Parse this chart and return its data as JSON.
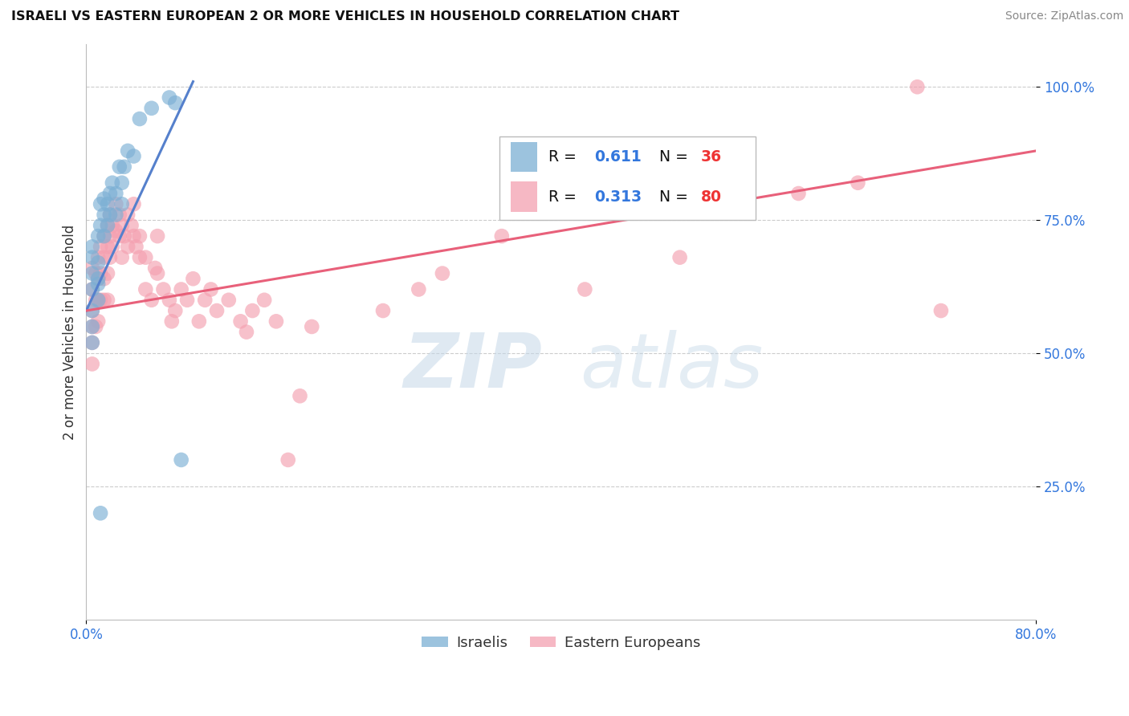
{
  "title": "ISRAELI VS EASTERN EUROPEAN 2 OR MORE VEHICLES IN HOUSEHOLD CORRELATION CHART",
  "source": "Source: ZipAtlas.com",
  "ylabel": "2 or more Vehicles in Household",
  "xlim": [
    0.0,
    0.8
  ],
  "ylim": [
    0.0,
    1.08
  ],
  "xticks": [
    0.0,
    0.8
  ],
  "xticklabels": [
    "0.0%",
    "80.0%"
  ],
  "ytick_positions": [
    0.25,
    0.5,
    0.75,
    1.0
  ],
  "ytick_labels": [
    "25.0%",
    "50.0%",
    "75.0%",
    "100.0%"
  ],
  "legend_r_israeli": "0.611",
  "legend_n_israeli": "36",
  "legend_r_eastern": "0.313",
  "legend_n_eastern": "80",
  "israeli_color": "#7BAFD4",
  "eastern_color": "#F4A0B0",
  "israeli_line_color": "#5580CC",
  "eastern_line_color": "#E8607A",
  "watermark_zip": "ZIP",
  "watermark_atlas": "atlas",
  "israeli_points": [
    [
      0.005,
      0.62
    ],
    [
      0.005,
      0.65
    ],
    [
      0.005,
      0.58
    ],
    [
      0.005,
      0.55
    ],
    [
      0.005,
      0.52
    ],
    [
      0.005,
      0.68
    ],
    [
      0.005,
      0.7
    ],
    [
      0.01,
      0.6
    ],
    [
      0.01,
      0.63
    ],
    [
      0.01,
      0.67
    ],
    [
      0.01,
      0.72
    ],
    [
      0.01,
      0.64
    ],
    [
      0.012,
      0.78
    ],
    [
      0.012,
      0.74
    ],
    [
      0.015,
      0.79
    ],
    [
      0.015,
      0.76
    ],
    [
      0.015,
      0.72
    ],
    [
      0.018,
      0.78
    ],
    [
      0.018,
      0.74
    ],
    [
      0.02,
      0.8
    ],
    [
      0.02,
      0.76
    ],
    [
      0.022,
      0.82
    ],
    [
      0.025,
      0.8
    ],
    [
      0.025,
      0.76
    ],
    [
      0.028,
      0.85
    ],
    [
      0.03,
      0.82
    ],
    [
      0.03,
      0.78
    ],
    [
      0.032,
      0.85
    ],
    [
      0.035,
      0.88
    ],
    [
      0.04,
      0.87
    ],
    [
      0.045,
      0.94
    ],
    [
      0.055,
      0.96
    ],
    [
      0.07,
      0.98
    ],
    [
      0.075,
      0.97
    ],
    [
      0.08,
      0.3
    ],
    [
      0.012,
      0.2
    ]
  ],
  "eastern_points": [
    [
      0.005,
      0.66
    ],
    [
      0.005,
      0.62
    ],
    [
      0.005,
      0.58
    ],
    [
      0.005,
      0.55
    ],
    [
      0.005,
      0.52
    ],
    [
      0.005,
      0.48
    ],
    [
      0.008,
      0.65
    ],
    [
      0.008,
      0.6
    ],
    [
      0.008,
      0.55
    ],
    [
      0.01,
      0.68
    ],
    [
      0.01,
      0.64
    ],
    [
      0.01,
      0.6
    ],
    [
      0.01,
      0.56
    ],
    [
      0.012,
      0.7
    ],
    [
      0.012,
      0.65
    ],
    [
      0.012,
      0.6
    ],
    [
      0.015,
      0.72
    ],
    [
      0.015,
      0.68
    ],
    [
      0.015,
      0.64
    ],
    [
      0.015,
      0.6
    ],
    [
      0.018,
      0.74
    ],
    [
      0.018,
      0.7
    ],
    [
      0.018,
      0.65
    ],
    [
      0.018,
      0.6
    ],
    [
      0.02,
      0.76
    ],
    [
      0.02,
      0.72
    ],
    [
      0.02,
      0.68
    ],
    [
      0.022,
      0.74
    ],
    [
      0.022,
      0.7
    ],
    [
      0.025,
      0.78
    ],
    [
      0.025,
      0.73
    ],
    [
      0.028,
      0.76
    ],
    [
      0.028,
      0.72
    ],
    [
      0.03,
      0.74
    ],
    [
      0.03,
      0.68
    ],
    [
      0.032,
      0.72
    ],
    [
      0.035,
      0.76
    ],
    [
      0.035,
      0.7
    ],
    [
      0.038,
      0.74
    ],
    [
      0.04,
      0.78
    ],
    [
      0.04,
      0.72
    ],
    [
      0.042,
      0.7
    ],
    [
      0.045,
      0.68
    ],
    [
      0.045,
      0.72
    ],
    [
      0.05,
      0.68
    ],
    [
      0.05,
      0.62
    ],
    [
      0.055,
      0.6
    ],
    [
      0.058,
      0.66
    ],
    [
      0.06,
      0.72
    ],
    [
      0.06,
      0.65
    ],
    [
      0.065,
      0.62
    ],
    [
      0.07,
      0.6
    ],
    [
      0.072,
      0.56
    ],
    [
      0.075,
      0.58
    ],
    [
      0.08,
      0.62
    ],
    [
      0.085,
      0.6
    ],
    [
      0.09,
      0.64
    ],
    [
      0.095,
      0.56
    ],
    [
      0.1,
      0.6
    ],
    [
      0.105,
      0.62
    ],
    [
      0.11,
      0.58
    ],
    [
      0.12,
      0.6
    ],
    [
      0.13,
      0.56
    ],
    [
      0.135,
      0.54
    ],
    [
      0.14,
      0.58
    ],
    [
      0.15,
      0.6
    ],
    [
      0.16,
      0.56
    ],
    [
      0.17,
      0.3
    ],
    [
      0.18,
      0.42
    ],
    [
      0.19,
      0.55
    ],
    [
      0.25,
      0.58
    ],
    [
      0.28,
      0.62
    ],
    [
      0.3,
      0.65
    ],
    [
      0.35,
      0.72
    ],
    [
      0.42,
      0.62
    ],
    [
      0.5,
      0.68
    ],
    [
      0.6,
      0.8
    ],
    [
      0.65,
      0.82
    ],
    [
      0.7,
      1.0
    ],
    [
      0.72,
      0.58
    ]
  ],
  "israeli_line": [
    0.0,
    0.58,
    0.09,
    1.01
  ],
  "eastern_line": [
    0.0,
    0.58,
    0.8,
    0.88
  ]
}
